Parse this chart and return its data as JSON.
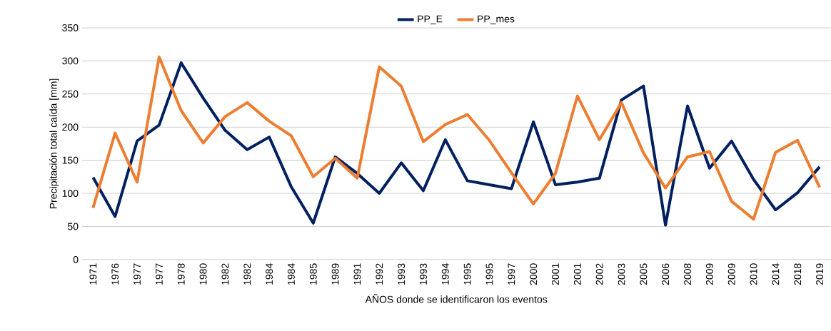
{
  "chart_data": {
    "type": "line",
    "xlabel": "AÑOS donde se identificaron los eventos",
    "ylabel": "Precipitación total caída [mm]",
    "categories": [
      "1971",
      "1976",
      "1977",
      "1977",
      "1978",
      "1980",
      "1982",
      "1982",
      "1984",
      "1984",
      "1985",
      "1989",
      "1991",
      "1992",
      "1993",
      "1993",
      "1994",
      "1995",
      "1995",
      "1997",
      "2000",
      "2001",
      "2001",
      "2002",
      "2003",
      "2005",
      "2006",
      "2008",
      "2009",
      "2009",
      "2010",
      "2014",
      "2018",
      "2019"
    ],
    "series": [
      {
        "name": "PP_E",
        "color": "#002060",
        "values": [
          124,
          65,
          179,
          203,
          297,
          244,
          195,
          166,
          185,
          110,
          55,
          155,
          130,
          100,
          146,
          104,
          181,
          119,
          113,
          107,
          208,
          113,
          117,
          123,
          241,
          262,
          52,
          232,
          138,
          179,
          121,
          75,
          101,
          140
        ]
      },
      {
        "name": "PP_mes",
        "color": "#ed7d31",
        "values": [
          78,
          191,
          117,
          306,
          225,
          176,
          216,
          237,
          209,
          187,
          125,
          153,
          123,
          291,
          262,
          178,
          204,
          219,
          180,
          131,
          84,
          130,
          247,
          181,
          237,
          161,
          108,
          155,
          163,
          88,
          61,
          162,
          180,
          109
        ]
      }
    ],
    "ylim": [
      0,
      350
    ],
    "yticks": [
      0,
      50,
      100,
      150,
      200,
      250,
      300,
      350
    ],
    "grid": "y",
    "legend": "top",
    "marker": "none",
    "line_style": "solid"
  }
}
